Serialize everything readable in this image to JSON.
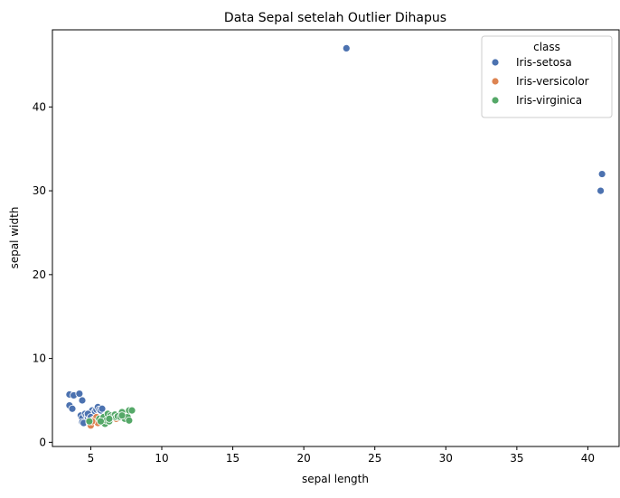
{
  "chart_data": {
    "type": "scatter",
    "title": "Data Sepal setelah Outlier Dihapus",
    "xlabel": "sepal length",
    "ylabel": "sepal width",
    "xlim": [
      2.3,
      42.2
    ],
    "ylim": [
      -0.5,
      49.2
    ],
    "xticks": [
      5,
      10,
      15,
      20,
      25,
      30,
      35,
      40
    ],
    "yticks": [
      0,
      10,
      20,
      30,
      40
    ],
    "grid": false,
    "legend": {
      "title": "class",
      "placement": "top-right"
    },
    "series": [
      {
        "name": "Iris-setosa",
        "color": "#4c72b0",
        "points": [
          [
            23,
            47
          ],
          [
            41,
            32
          ],
          [
            40.9,
            30
          ],
          [
            3.5,
            5.7
          ],
          [
            3.8,
            5.6
          ],
          [
            3.5,
            4.4
          ],
          [
            3.7,
            4.0
          ],
          [
            4.2,
            5.8
          ],
          [
            4.4,
            5.0
          ],
          [
            4.3,
            3.2
          ],
          [
            4.4,
            2.9
          ],
          [
            4.4,
            2.4
          ],
          [
            4.6,
            3.4
          ],
          [
            4.7,
            3.2
          ],
          [
            4.8,
            3.0
          ],
          [
            4.9,
            3.1
          ],
          [
            5.0,
            3.6
          ],
          [
            5.0,
            3.3
          ],
          [
            5.1,
            3.5
          ],
          [
            5.1,
            3.8
          ],
          [
            5.2,
            3.4
          ],
          [
            5.3,
            3.7
          ],
          [
            5.4,
            3.9
          ],
          [
            5.5,
            4.2
          ],
          [
            5.6,
            3.9
          ],
          [
            5.7,
            3.8
          ],
          [
            5.8,
            4.0
          ],
          [
            4.5,
            2.3
          ],
          [
            4.8,
            3.4
          ],
          [
            5.0,
            3.0
          ]
        ]
      },
      {
        "name": "Iris-versicolor",
        "color": "#dd8452",
        "points": [
          [
            4.9,
            2.4
          ],
          [
            5.0,
            2.0
          ],
          [
            5.2,
            2.7
          ],
          [
            5.5,
            2.3
          ],
          [
            5.6,
            2.9
          ],
          [
            5.7,
            2.8
          ],
          [
            5.8,
            2.7
          ],
          [
            5.9,
            3.0
          ],
          [
            6.0,
            2.2
          ],
          [
            6.1,
            2.8
          ],
          [
            6.2,
            2.9
          ],
          [
            6.3,
            3.3
          ],
          [
            6.4,
            3.2
          ],
          [
            6.6,
            2.9
          ],
          [
            6.7,
            3.1
          ],
          [
            6.8,
            2.8
          ],
          [
            6.9,
            3.1
          ],
          [
            7.0,
            3.2
          ],
          [
            5.4,
            3.0
          ],
          [
            5.1,
            2.5
          ]
        ]
      },
      {
        "name": "Iris-virginica",
        "color": "#55a868",
        "points": [
          [
            4.9,
            2.5
          ],
          [
            5.6,
            2.8
          ],
          [
            5.8,
            2.7
          ],
          [
            5.9,
            3.0
          ],
          [
            6.0,
            2.2
          ],
          [
            6.1,
            2.6
          ],
          [
            6.2,
            3.4
          ],
          [
            6.3,
            2.5
          ],
          [
            6.4,
            3.2
          ],
          [
            6.5,
            3.0
          ],
          [
            6.7,
            3.3
          ],
          [
            6.8,
            3.0
          ],
          [
            6.9,
            3.1
          ],
          [
            7.1,
            3.0
          ],
          [
            7.2,
            3.6
          ],
          [
            7.3,
            2.9
          ],
          [
            7.4,
            2.8
          ],
          [
            7.6,
            3.0
          ],
          [
            7.7,
            3.8
          ],
          [
            7.9,
            3.8
          ],
          [
            7.7,
            2.6
          ],
          [
            7.2,
            3.2
          ],
          [
            6.3,
            2.8
          ],
          [
            5.7,
            2.5
          ]
        ]
      }
    ]
  }
}
